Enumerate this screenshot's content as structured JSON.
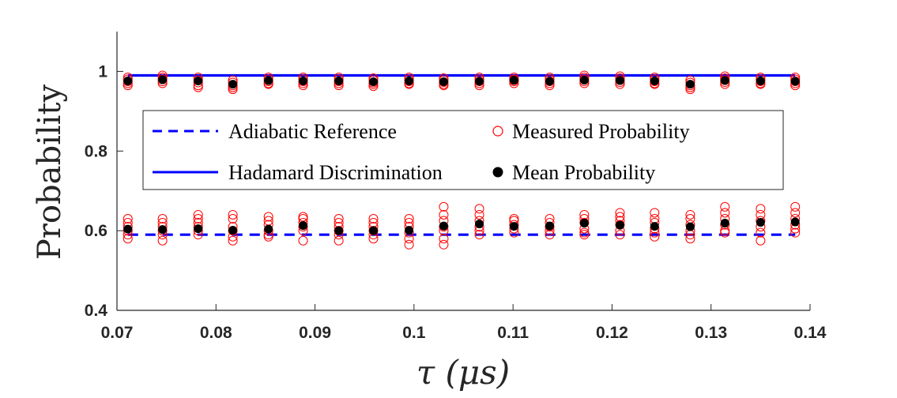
{
  "chart_data": {
    "type": "scatter",
    "title": "",
    "xlabel": "τ (μs)",
    "ylabel": "Probability",
    "xlim": [
      0.07,
      0.14
    ],
    "ylim": [
      0.4,
      1.1
    ],
    "xticks": [
      0.07,
      0.08,
      0.09,
      0.1,
      0.11,
      0.12,
      0.13,
      0.14
    ],
    "xtick_labels": [
      "0.07",
      "0.08",
      "0.09",
      "0.1",
      "0.11",
      "0.12",
      "0.13",
      "0.14"
    ],
    "yticks": [
      0.4,
      0.6,
      0.8,
      1.0
    ],
    "ytick_labels": [
      "0.4",
      "0.6",
      "0.8",
      "1"
    ],
    "grid": false,
    "legend_position": "middle-center",
    "x": [
      0.0711,
      0.0746,
      0.0782,
      0.0817,
      0.0853,
      0.0888,
      0.0924,
      0.0959,
      0.0995,
      0.103,
      0.1066,
      0.1101,
      0.1137,
      0.1172,
      0.1208,
      0.1243,
      0.1279,
      0.1314,
      0.135,
      0.1385
    ],
    "series": [
      {
        "name": "Adiabatic Reference",
        "style": "dashed-line",
        "color": "#0000ff",
        "values": [
          0.59,
          0.59
        ]
      },
      {
        "name": "Hadamard Discrimination",
        "style": "solid-line",
        "color": "#0000ff",
        "values": [
          0.99,
          0.99
        ]
      },
      {
        "name": "Measured Probability",
        "style": "open-circle",
        "color": "#ff0000",
        "upper_values": [
          [
            0.985,
            0.98,
            0.975,
            0.97,
            0.965
          ],
          [
            0.99,
            0.985,
            0.98,
            0.975,
            0.97
          ],
          [
            0.985,
            0.978,
            0.972,
            0.965,
            0.96
          ],
          [
            0.978,
            0.972,
            0.965,
            0.96,
            0.955
          ],
          [
            0.985,
            0.98,
            0.975,
            0.97,
            0.968
          ],
          [
            0.985,
            0.98,
            0.975,
            0.97,
            0.965
          ],
          [
            0.985,
            0.98,
            0.975,
            0.97,
            0.965
          ],
          [
            0.983,
            0.978,
            0.972,
            0.968,
            0.963
          ],
          [
            0.985,
            0.98,
            0.975,
            0.97,
            0.968
          ],
          [
            0.983,
            0.978,
            0.973,
            0.968,
            0.965
          ],
          [
            0.985,
            0.98,
            0.975,
            0.97,
            0.965
          ],
          [
            0.985,
            0.98,
            0.978,
            0.975,
            0.97
          ],
          [
            0.985,
            0.98,
            0.975,
            0.97,
            0.965
          ],
          [
            0.99,
            0.985,
            0.98,
            0.975,
            0.97
          ],
          [
            0.988,
            0.983,
            0.978,
            0.973,
            0.968
          ],
          [
            0.985,
            0.98,
            0.975,
            0.97,
            0.968
          ],
          [
            0.978,
            0.972,
            0.965,
            0.96,
            0.955
          ],
          [
            0.988,
            0.983,
            0.978,
            0.973,
            0.968
          ],
          [
            0.985,
            0.98,
            0.975,
            0.97,
            0.968
          ],
          [
            0.985,
            0.98,
            0.975,
            0.97,
            0.965
          ]
        ],
        "lower_values": [
          [
            0.63,
            0.62,
            0.61,
            0.6,
            0.59,
            0.58
          ],
          [
            0.63,
            0.62,
            0.61,
            0.6,
            0.59,
            0.575
          ],
          [
            0.64,
            0.63,
            0.62,
            0.61,
            0.6,
            0.59
          ],
          [
            0.64,
            0.63,
            0.61,
            0.6,
            0.585,
            0.575
          ],
          [
            0.635,
            0.625,
            0.615,
            0.6,
            0.59,
            0.585
          ],
          [
            0.635,
            0.63,
            0.62,
            0.61,
            0.6,
            0.575
          ],
          [
            0.63,
            0.62,
            0.61,
            0.6,
            0.59,
            0.575
          ],
          [
            0.63,
            0.62,
            0.61,
            0.6,
            0.59,
            0.58
          ],
          [
            0.63,
            0.62,
            0.61,
            0.595,
            0.58,
            0.565
          ],
          [
            0.66,
            0.64,
            0.625,
            0.61,
            0.6,
            0.58,
            0.565
          ],
          [
            0.655,
            0.64,
            0.625,
            0.61,
            0.6,
            0.59
          ],
          [
            0.63,
            0.625,
            0.615,
            0.605,
            0.595
          ],
          [
            0.63,
            0.62,
            0.61,
            0.6,
            0.59
          ],
          [
            0.64,
            0.63,
            0.62,
            0.605,
            0.595,
            0.59
          ],
          [
            0.645,
            0.635,
            0.625,
            0.615,
            0.6,
            0.59
          ],
          [
            0.645,
            0.63,
            0.62,
            0.605,
            0.595,
            0.585
          ],
          [
            0.64,
            0.63,
            0.615,
            0.6,
            0.59,
            0.58
          ],
          [
            0.66,
            0.645,
            0.63,
            0.615,
            0.6,
            0.595
          ],
          [
            0.655,
            0.64,
            0.625,
            0.61,
            0.595,
            0.575
          ],
          [
            0.66,
            0.645,
            0.63,
            0.615,
            0.605,
            0.595
          ]
        ]
      },
      {
        "name": "Mean Probability",
        "style": "filled-circle",
        "color": "#000000",
        "upper_values": [
          0.976,
          0.979,
          0.976,
          0.968,
          0.977,
          0.976,
          0.976,
          0.974,
          0.976,
          0.974,
          0.975,
          0.978,
          0.975,
          0.978,
          0.977,
          0.976,
          0.968,
          0.977,
          0.976,
          0.975
        ],
        "lower_values": [
          0.604,
          0.603,
          0.605,
          0.601,
          0.604,
          0.613,
          0.6,
          0.6,
          0.601,
          0.612,
          0.617,
          0.611,
          0.612,
          0.619,
          0.614,
          0.611,
          0.61,
          0.619,
          0.621,
          0.622
        ]
      }
    ]
  },
  "legend": {
    "adiabatic_label": "Adiabatic Reference",
    "hadamard_label": "Hadamard Discrimination",
    "measured_label": "Measured Probability",
    "mean_label": "Mean Probability"
  }
}
